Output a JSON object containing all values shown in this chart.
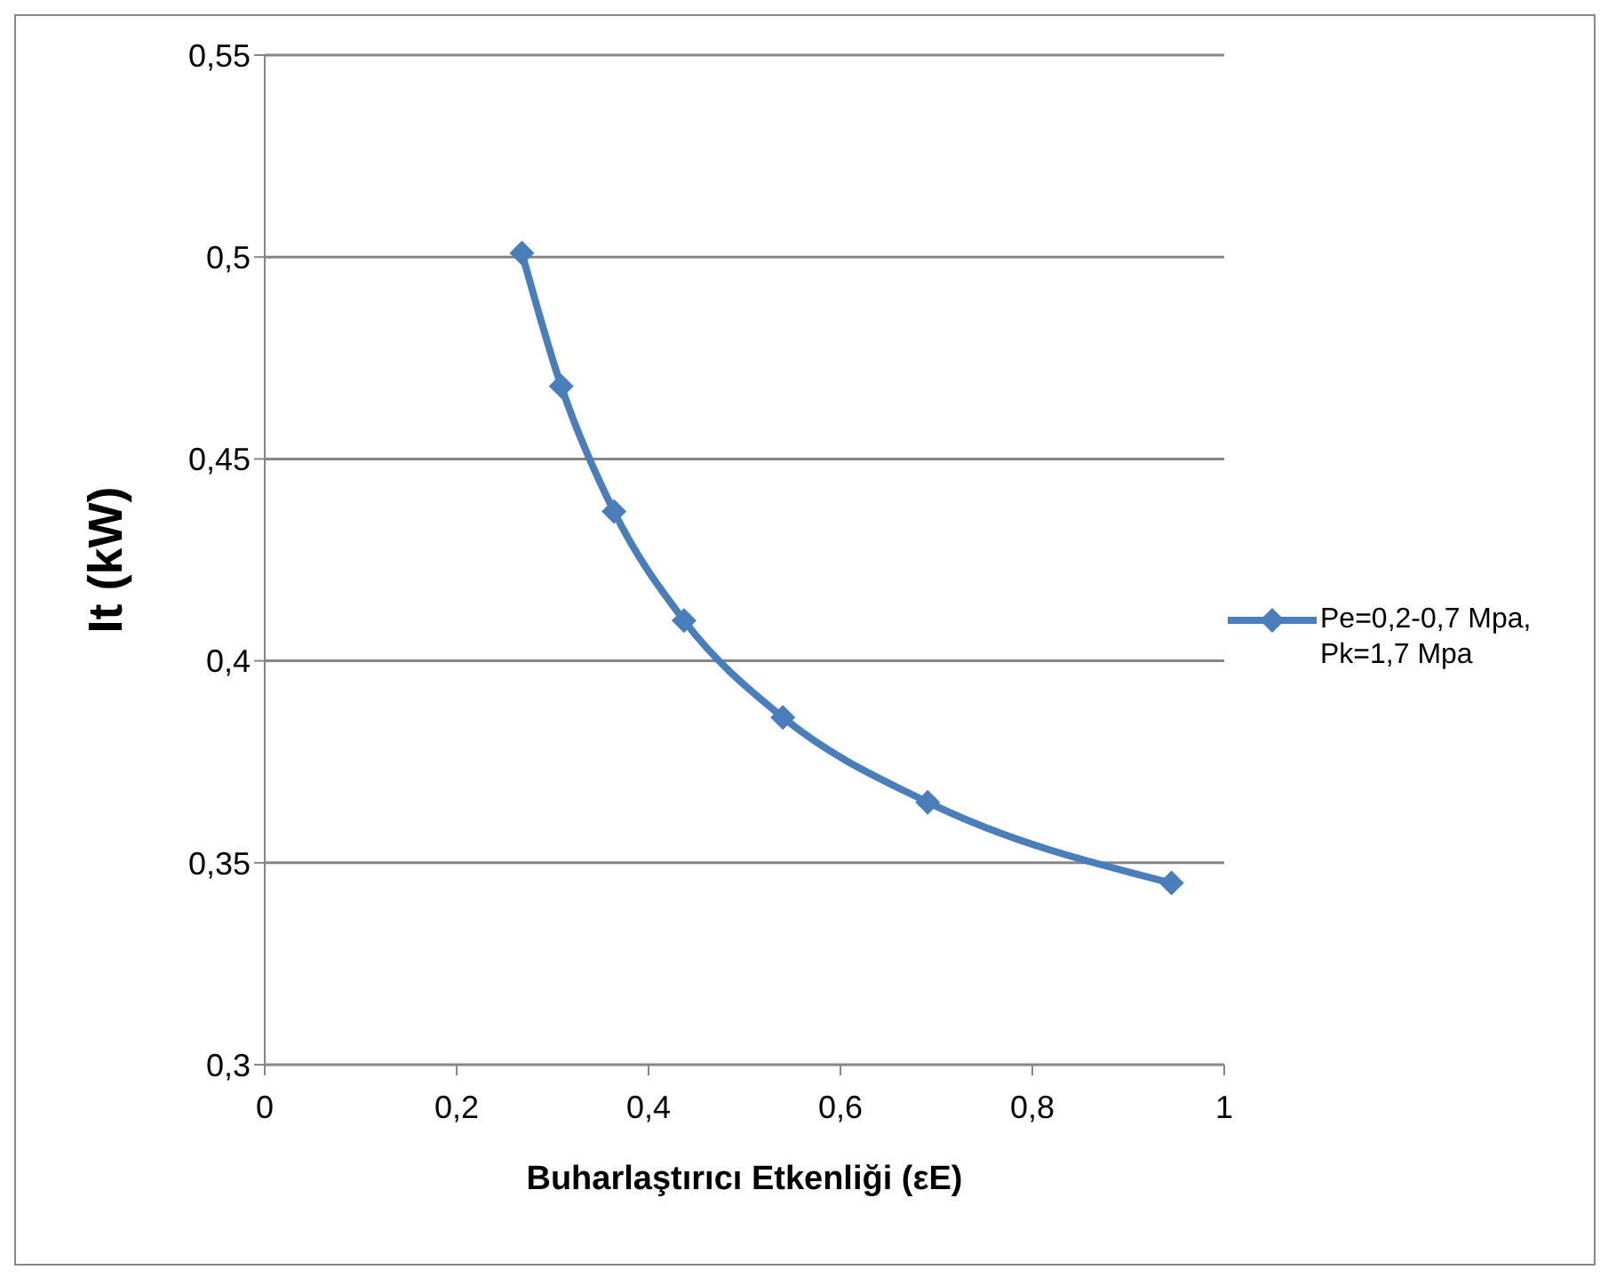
{
  "chart_data": {
    "type": "line",
    "xlabel": "Buharlaştırıcı Etkenliği (εE)",
    "ylabel": "It (kW)",
    "x": [
      0.268,
      0.309,
      0.364,
      0.437,
      0.54,
      0.691,
      0.945
    ],
    "series": [
      {
        "name": "Pe=0,2-0,7 Mpa, Pk=1,7 Mpa",
        "color": "#4a7ebb",
        "values": [
          0.501,
          0.468,
          0.437,
          0.41,
          0.386,
          0.365,
          0.345
        ]
      }
    ],
    "xlim": [
      0,
      1
    ],
    "xticks": [
      0,
      {
        "value": 0.2,
        "label": "0,2"
      },
      {
        "value": 0.4,
        "label": "0,4"
      },
      {
        "value": 0.6,
        "label": "0,6"
      },
      {
        "value": 0.8,
        "label": "0,8"
      },
      1
    ],
    "ylim": [
      0.3,
      0.55
    ],
    "yticks": [
      {
        "value": 0.3,
        "label": "0,3"
      },
      {
        "value": 0.35,
        "label": "0,35"
      },
      {
        "value": 0.4,
        "label": "0,4"
      },
      {
        "value": 0.45,
        "label": "0,45"
      },
      {
        "value": 0.5,
        "label": "0,5"
      },
      {
        "value": 0.55,
        "label": "0,55"
      }
    ],
    "grid": "y",
    "legend": "right",
    "marker": "diamond",
    "line_style": "solid"
  }
}
